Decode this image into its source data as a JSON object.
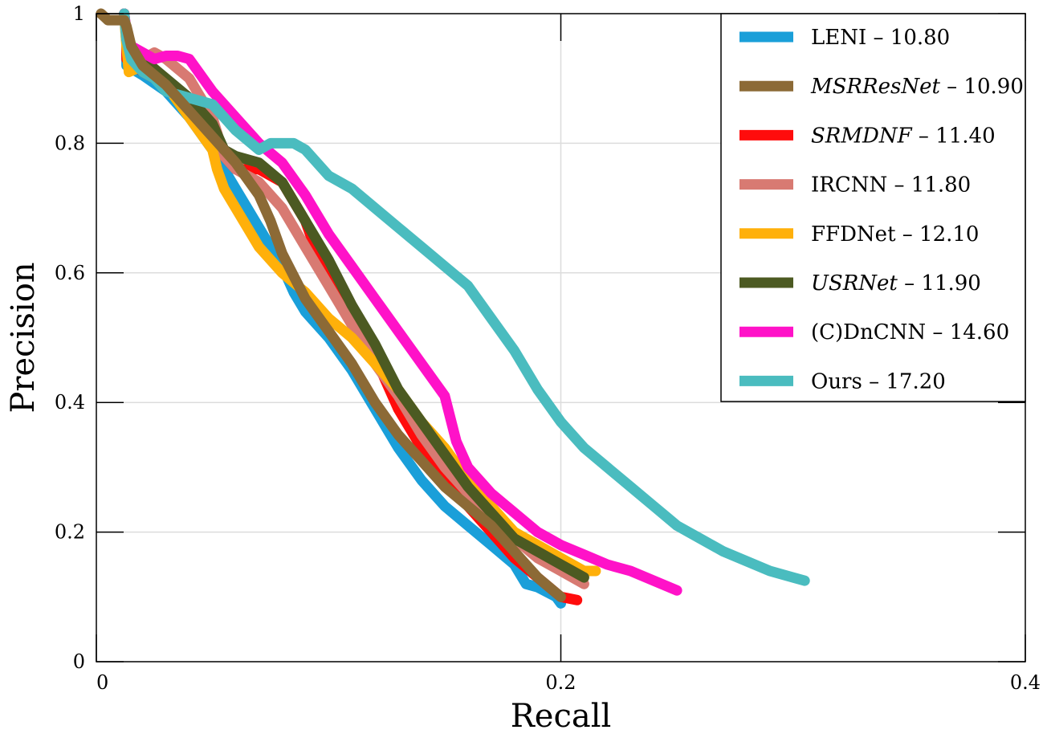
{
  "chart_data": {
    "type": "line",
    "xlabel": "Recall",
    "ylabel": "Precision",
    "xlim": [
      0,
      0.4
    ],
    "ylim": [
      0,
      1
    ],
    "x_ticks": [
      0,
      0.2,
      0.4
    ],
    "x_tick_labels": [
      "0",
      "0.2",
      "0.4"
    ],
    "y_ticks": [
      0,
      0.2,
      0.4,
      0.6,
      0.8,
      1
    ],
    "y_tick_labels": [
      "0",
      "0.2",
      "0.4",
      "0.6",
      "0.8",
      "1"
    ],
    "grid": true,
    "legend_position": "top-right",
    "series": [
      {
        "name": "LENI",
        "score": "10.80",
        "italic": false,
        "color": "#1a9fd9",
        "x": [
          0.012,
          0.013,
          0.013,
          0.02,
          0.03,
          0.04,
          0.05,
          0.06,
          0.07,
          0.08,
          0.085,
          0.09,
          0.1,
          0.11,
          0.12,
          0.13,
          0.14,
          0.15,
          0.16,
          0.17,
          0.18,
          0.185,
          0.19,
          0.198,
          0.2
        ],
        "y": [
          1.0,
          0.96,
          0.92,
          0.905,
          0.88,
          0.84,
          0.79,
          0.73,
          0.67,
          0.61,
          0.57,
          0.54,
          0.5,
          0.45,
          0.39,
          0.33,
          0.28,
          0.24,
          0.21,
          0.18,
          0.15,
          0.12,
          0.115,
          0.1,
          0.09
        ]
      },
      {
        "name": "SRMDNF",
        "score": "11.40",
        "italic": true,
        "color": "#ff0c0c",
        "x": [
          0.012,
          0.013,
          0.013,
          0.02,
          0.03,
          0.04,
          0.05,
          0.055,
          0.06,
          0.07,
          0.08,
          0.09,
          0.095,
          0.1,
          0.11,
          0.12,
          0.13,
          0.14,
          0.15,
          0.16,
          0.17,
          0.18,
          0.19,
          0.2,
          0.207
        ],
        "y": [
          1.0,
          0.96,
          0.93,
          0.91,
          0.89,
          0.86,
          0.82,
          0.78,
          0.76,
          0.76,
          0.74,
          0.68,
          0.63,
          0.6,
          0.53,
          0.47,
          0.39,
          0.33,
          0.29,
          0.24,
          0.2,
          0.16,
          0.13,
          0.1,
          0.095
        ]
      },
      {
        "name": "IRCNN",
        "score": "11.80",
        "italic": false,
        "color": "#d87a72",
        "x": [
          0.012,
          0.013,
          0.014,
          0.02,
          0.025,
          0.03,
          0.04,
          0.05,
          0.055,
          0.06,
          0.07,
          0.08,
          0.09,
          0.1,
          0.11,
          0.12,
          0.13,
          0.14,
          0.15,
          0.16,
          0.17,
          0.18,
          0.19,
          0.2,
          0.21
        ],
        "y": [
          1.0,
          0.97,
          0.94,
          0.93,
          0.94,
          0.93,
          0.9,
          0.84,
          0.78,
          0.76,
          0.74,
          0.7,
          0.64,
          0.58,
          0.52,
          0.46,
          0.41,
          0.35,
          0.3,
          0.26,
          0.22,
          0.19,
          0.16,
          0.14,
          0.12
        ]
      },
      {
        "name": "FFDNet",
        "score": "12.10",
        "italic": false,
        "color": "#ffb00a",
        "x": [
          0.012,
          0.013,
          0.014,
          0.02,
          0.03,
          0.04,
          0.05,
          0.052,
          0.055,
          0.06,
          0.07,
          0.08,
          0.09,
          0.1,
          0.11,
          0.12,
          0.13,
          0.14,
          0.15,
          0.16,
          0.17,
          0.18,
          0.19,
          0.2,
          0.21,
          0.215
        ],
        "y": [
          1.0,
          0.95,
          0.91,
          0.92,
          0.89,
          0.84,
          0.79,
          0.76,
          0.73,
          0.7,
          0.64,
          0.6,
          0.57,
          0.53,
          0.5,
          0.46,
          0.42,
          0.37,
          0.33,
          0.28,
          0.24,
          0.2,
          0.18,
          0.16,
          0.14,
          0.14
        ]
      },
      {
        "name": "USRNet",
        "score": "11.90",
        "italic": true,
        "color": "#4c5a22",
        "x": [
          0.012,
          0.013,
          0.016,
          0.02,
          0.03,
          0.04,
          0.05,
          0.055,
          0.06,
          0.07,
          0.08,
          0.09,
          0.1,
          0.11,
          0.12,
          0.13,
          0.14,
          0.15,
          0.16,
          0.17,
          0.18,
          0.19,
          0.2,
          0.21
        ],
        "y": [
          1.0,
          0.96,
          0.94,
          0.93,
          0.9,
          0.87,
          0.83,
          0.79,
          0.78,
          0.77,
          0.74,
          0.68,
          0.62,
          0.55,
          0.49,
          0.42,
          0.37,
          0.32,
          0.27,
          0.23,
          0.19,
          0.17,
          0.15,
          0.13
        ]
      },
      {
        "name": "(C)DnCNN",
        "score": "14.60",
        "italic": false,
        "color": "#ff12c8",
        "x": [
          0.012,
          0.013,
          0.015,
          0.02,
          0.025,
          0.03,
          0.035,
          0.04,
          0.05,
          0.06,
          0.07,
          0.08,
          0.09,
          0.1,
          0.11,
          0.12,
          0.13,
          0.14,
          0.15,
          0.155,
          0.16,
          0.17,
          0.18,
          0.19,
          0.2,
          0.21,
          0.22,
          0.23,
          0.24,
          0.25
        ],
        "y": [
          1.0,
          0.97,
          0.95,
          0.94,
          0.93,
          0.935,
          0.935,
          0.93,
          0.88,
          0.84,
          0.8,
          0.77,
          0.72,
          0.66,
          0.61,
          0.56,
          0.51,
          0.46,
          0.41,
          0.34,
          0.3,
          0.26,
          0.23,
          0.2,
          0.18,
          0.165,
          0.15,
          0.14,
          0.125,
          0.11
        ]
      },
      {
        "name": "Ours",
        "score": "17.20",
        "italic": false,
        "color": "#4abcbf",
        "x": [
          0.012,
          0.013,
          0.015,
          0.02,
          0.025,
          0.03,
          0.035,
          0.04,
          0.05,
          0.055,
          0.06,
          0.07,
          0.075,
          0.08,
          0.085,
          0.09,
          0.1,
          0.11,
          0.12,
          0.13,
          0.14,
          0.15,
          0.16,
          0.17,
          0.18,
          0.19,
          0.2,
          0.21,
          0.22,
          0.23,
          0.24,
          0.25,
          0.26,
          0.27,
          0.28,
          0.29,
          0.3,
          0.305
        ],
        "y": [
          1.0,
          0.96,
          0.93,
          0.91,
          0.9,
          0.88,
          0.875,
          0.87,
          0.86,
          0.84,
          0.82,
          0.79,
          0.8,
          0.8,
          0.8,
          0.79,
          0.75,
          0.73,
          0.7,
          0.67,
          0.64,
          0.61,
          0.58,
          0.53,
          0.48,
          0.42,
          0.37,
          0.33,
          0.3,
          0.27,
          0.24,
          0.21,
          0.19,
          0.17,
          0.155,
          0.14,
          0.13,
          0.125
        ]
      },
      {
        "name": "MSRResNet",
        "score": "10.90",
        "italic": true,
        "color": "#8c6a36",
        "x": [
          0.002,
          0.005,
          0.01,
          0.012,
          0.013,
          0.015,
          0.02,
          0.03,
          0.04,
          0.05,
          0.06,
          0.07,
          0.075,
          0.08,
          0.09,
          0.1,
          0.11,
          0.12,
          0.13,
          0.14,
          0.15,
          0.16,
          0.17,
          0.18,
          0.19,
          0.2
        ],
        "y": [
          1.0,
          0.99,
          0.99,
          0.99,
          0.98,
          0.95,
          0.92,
          0.89,
          0.85,
          0.81,
          0.77,
          0.72,
          0.68,
          0.63,
          0.56,
          0.51,
          0.46,
          0.4,
          0.35,
          0.31,
          0.27,
          0.24,
          0.21,
          0.17,
          0.13,
          0.1
        ]
      }
    ],
    "legend_order": [
      "LENI",
      "MSRResNet",
      "SRMDNF",
      "IRCNN",
      "FFDNet",
      "USRNet",
      "(C)DnCNN",
      "Ours"
    ]
  }
}
